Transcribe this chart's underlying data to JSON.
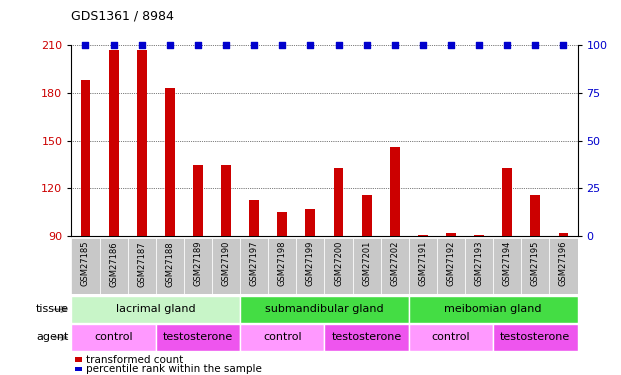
{
  "title": "GDS1361 / 8984",
  "samples": [
    "GSM27185",
    "GSM27186",
    "GSM27187",
    "GSM27188",
    "GSM27189",
    "GSM27190",
    "GSM27197",
    "GSM27198",
    "GSM27199",
    "GSM27200",
    "GSM27201",
    "GSM27202",
    "GSM27191",
    "GSM27192",
    "GSM27193",
    "GSM27194",
    "GSM27195",
    "GSM27196"
  ],
  "red_values": [
    188,
    207,
    207,
    183,
    135,
    135,
    113,
    105,
    107,
    133,
    116,
    146,
    91,
    92,
    91,
    133,
    116,
    92
  ],
  "blue_values": [
    100,
    100,
    100,
    100,
    100,
    100,
    100,
    100,
    100,
    100,
    100,
    100,
    100,
    100,
    100,
    100,
    100,
    100
  ],
  "ylim_low": 90,
  "ylim_high": 210,
  "yticks": [
    90,
    120,
    150,
    180,
    210
  ],
  "y2lim_low": 0,
  "y2lim_high": 100,
  "y2ticks": [
    0,
    25,
    50,
    75,
    100
  ],
  "tissue_groups": [
    {
      "label": "lacrimal gland",
      "start": 0,
      "end": 6,
      "color": "#C8F5C8"
    },
    {
      "label": "submandibular gland",
      "start": 6,
      "end": 12,
      "color": "#44DD44"
    },
    {
      "label": "meibomian gland",
      "start": 12,
      "end": 18,
      "color": "#44DD44"
    }
  ],
  "agent_groups": [
    {
      "label": "control",
      "start": 0,
      "end": 3,
      "color": "#FF99FF"
    },
    {
      "label": "testosterone",
      "start": 3,
      "end": 6,
      "color": "#EE55EE"
    },
    {
      "label": "control",
      "start": 6,
      "end": 9,
      "color": "#FF99FF"
    },
    {
      "label": "testosterone",
      "start": 9,
      "end": 12,
      "color": "#EE55EE"
    },
    {
      "label": "control",
      "start": 12,
      "end": 15,
      "color": "#FF99FF"
    },
    {
      "label": "testosterone",
      "start": 15,
      "end": 18,
      "color": "#EE55EE"
    }
  ],
  "xticklabel_bg": "#C8C8C8",
  "red_color": "#CC0000",
  "blue_color": "#0000CC",
  "legend_red": "transformed count",
  "legend_blue": "percentile rank within the sample",
  "bar_width": 0.35
}
